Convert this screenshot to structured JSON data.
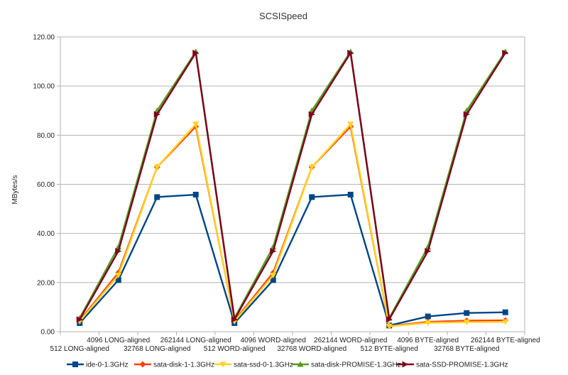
{
  "chart_data": {
    "type": "line",
    "title": "SCSISpeed",
    "xlabel": "",
    "ylabel": "MBytes/s",
    "ylim": [
      0,
      120
    ],
    "yticks": [
      "0.00",
      "20.00",
      "40.00",
      "60.00",
      "80.00",
      "100.00",
      "120.00"
    ],
    "grid": true,
    "legend": "bottom",
    "categories": [
      "512 LONG-aligned",
      "4096 LONG-aligned",
      "32768 LONG-aligned",
      "262144 LONG-aligned",
      "512 WORD-aligned",
      "4096 WORD-aligned",
      "32768 WORD-aligned",
      "262144 WORD-aligned",
      "512 BYTE-aligned",
      "4096 BYTE-aligned",
      "32768 BYTE-aligned",
      "262144 BYTE-aligned"
    ],
    "series": [
      {
        "name": "ide-0-1.3GHz",
        "color": "#004586",
        "marker": "square",
        "values": [
          3.5,
          21,
          54.8,
          55.8,
          3.5,
          21,
          54.8,
          55.8,
          2.5,
          6.2,
          7.6,
          7.9
        ]
      },
      {
        "name": "sata-disk-1-1.3GHz",
        "color": "#ff420e",
        "marker": "diamond",
        "values": [
          4.5,
          24,
          67,
          83.5,
          4.5,
          24,
          67,
          83.5,
          2.3,
          4,
          4.5,
          4.6
        ]
      },
      {
        "name": "sata-ssd-0-1.3GHz",
        "color": "#ffd320",
        "marker": "triangle-down",
        "values": [
          4.2,
          23,
          67,
          84.5,
          4.2,
          23,
          67,
          84.5,
          2.2,
          3.6,
          3.9,
          4.0
        ]
      },
      {
        "name": "sata-disk-PROMISE-1.3GHz",
        "color": "#579d1c",
        "marker": "triangle-up",
        "values": [
          5.5,
          34.5,
          90,
          114,
          5.5,
          34.5,
          90,
          114,
          5.5,
          34.5,
          90,
          114
        ]
      },
      {
        "name": "sata-SSD-PROMISE-1.3GHz",
        "color": "#7e0021",
        "marker": "triangle-right",
        "values": [
          5.0,
          32.8,
          88.5,
          113.5,
          5.0,
          32.8,
          88.5,
          113.5,
          5.0,
          32.8,
          88.5,
          113.5
        ]
      }
    ]
  }
}
